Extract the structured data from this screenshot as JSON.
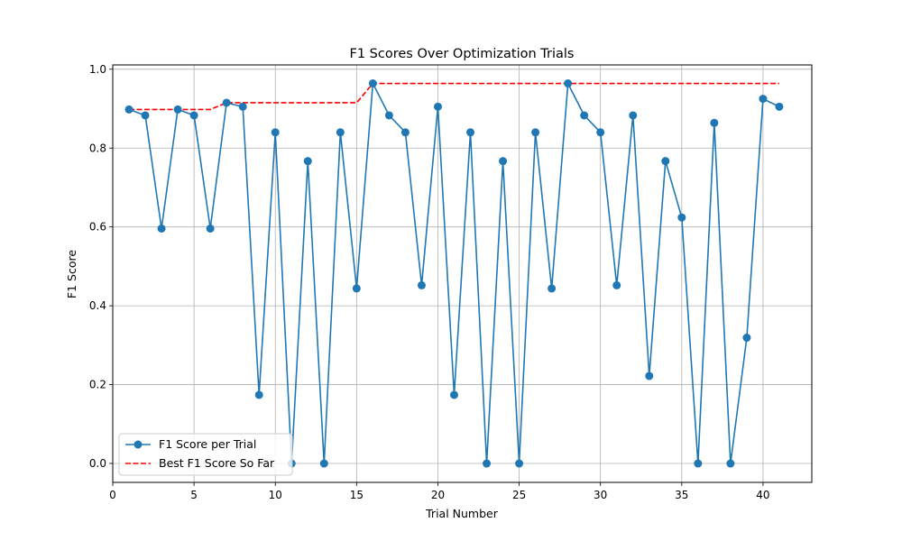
{
  "chart_data": {
    "type": "line",
    "title": "F1 Scores Over Optimization Trials",
    "xlabel": "Trial Number",
    "ylabel": "F1 Score",
    "xlim": [
      -0.0,
      43.0
    ],
    "ylim": [
      -0.048,
      1.011
    ],
    "xticks": [
      0,
      5,
      10,
      15,
      20,
      25,
      30,
      35,
      40
    ],
    "yticks": [
      0.0,
      0.2,
      0.4,
      0.6,
      0.8,
      1.0
    ],
    "xtick_labels": [
      "0",
      "5",
      "10",
      "15",
      "20",
      "25",
      "30",
      "35",
      "40"
    ],
    "ytick_labels": [
      "0.0",
      "0.2",
      "0.4",
      "0.6",
      "0.8",
      "1.0"
    ],
    "grid": true,
    "legend_position": "lower-left",
    "x": [
      1,
      2,
      3,
      4,
      5,
      6,
      7,
      8,
      9,
      10,
      11,
      12,
      13,
      14,
      15,
      16,
      17,
      18,
      19,
      20,
      21,
      22,
      23,
      24,
      25,
      26,
      27,
      28,
      29,
      30,
      31,
      32,
      33,
      34,
      35,
      36,
      37,
      38,
      39,
      40,
      41
    ],
    "series": [
      {
        "name": "F1 Score per Trial",
        "style": "solid-marker",
        "color": "#1f77b4",
        "values": [
          0.898,
          0.883,
          0.596,
          0.898,
          0.883,
          0.596,
          0.915,
          0.905,
          0.174,
          0.84,
          0.0,
          0.767,
          0.0,
          0.84,
          0.444,
          0.964,
          0.883,
          0.84,
          0.452,
          0.905,
          0.174,
          0.84,
          0.0,
          0.767,
          0.0,
          0.84,
          0.444,
          0.964,
          0.883,
          0.84,
          0.452,
          0.883,
          0.222,
          0.767,
          0.624,
          0.0,
          0.864,
          0.0,
          0.319,
          0.925,
          0.905
        ]
      },
      {
        "name": "Best F1 Score So Far",
        "style": "dashed",
        "color": "#ff0000",
        "values": [
          0.898,
          0.898,
          0.898,
          0.898,
          0.898,
          0.898,
          0.915,
          0.915,
          0.915,
          0.915,
          0.915,
          0.915,
          0.915,
          0.915,
          0.915,
          0.964,
          0.964,
          0.964,
          0.964,
          0.964,
          0.964,
          0.964,
          0.964,
          0.964,
          0.964,
          0.964,
          0.964,
          0.964,
          0.964,
          0.964,
          0.964,
          0.964,
          0.964,
          0.964,
          0.964,
          0.964,
          0.964,
          0.964,
          0.964,
          0.964,
          0.964
        ]
      }
    ]
  }
}
